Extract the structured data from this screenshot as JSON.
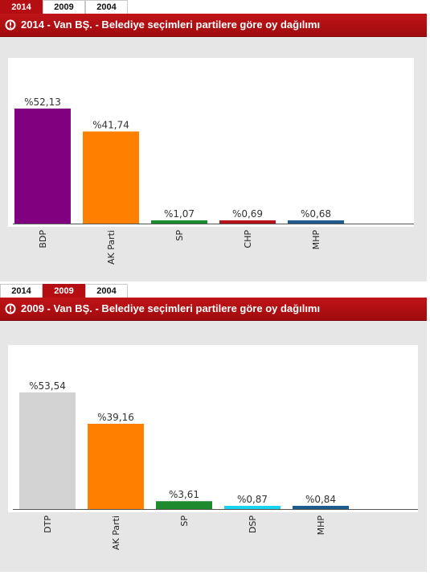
{
  "tabs": [
    "2014",
    "2009",
    "2004"
  ],
  "charts": [
    {
      "active_tab": "2014",
      "title": "2014 - Van BŞ. - Belediye seçimleri partilere göre oy dağılımı",
      "chart_data": {
        "type": "bar",
        "title": "2014 - Van BŞ. - Belediye seçimleri partilere göre oy dağılımı",
        "categories": [
          "BDP",
          "AK Parti",
          "SP",
          "CHP",
          "MHP"
        ],
        "values": [
          52.13,
          41.74,
          1.07,
          0.69,
          0.68
        ],
        "value_labels": [
          "%52,13",
          "%41,74",
          "%1,07",
          "%0,69",
          "%0,68"
        ],
        "colors": [
          "#800080",
          "#ff7f00",
          "#1e8a2e",
          "#b5121b",
          "#1f5b8c"
        ],
        "xlabel": "",
        "ylabel": "",
        "ylim": [
          0,
          52.13
        ]
      }
    },
    {
      "active_tab": "2009",
      "title": "2009 - Van BŞ. - Belediye seçimleri partilere göre oy dağılımı",
      "chart_data": {
        "type": "bar",
        "title": "2009 - Van BŞ. - Belediye seçimleri partilere göre oy dağılımı",
        "categories": [
          "DTP",
          "AK Parti",
          "SP",
          "DSP",
          "MHP"
        ],
        "values": [
          53.54,
          39.16,
          3.61,
          0.87,
          0.84
        ],
        "value_labels": [
          "%53,54",
          "%39,16",
          "%3,61",
          "%0,87",
          "%0,84"
        ],
        "colors": [
          "#d3d3d3",
          "#ff7f00",
          "#1e8a2e",
          "#19d4f0",
          "#1f5b8c"
        ],
        "xlabel": "",
        "ylabel": "",
        "ylim": [
          0,
          53.54
        ]
      }
    }
  ]
}
